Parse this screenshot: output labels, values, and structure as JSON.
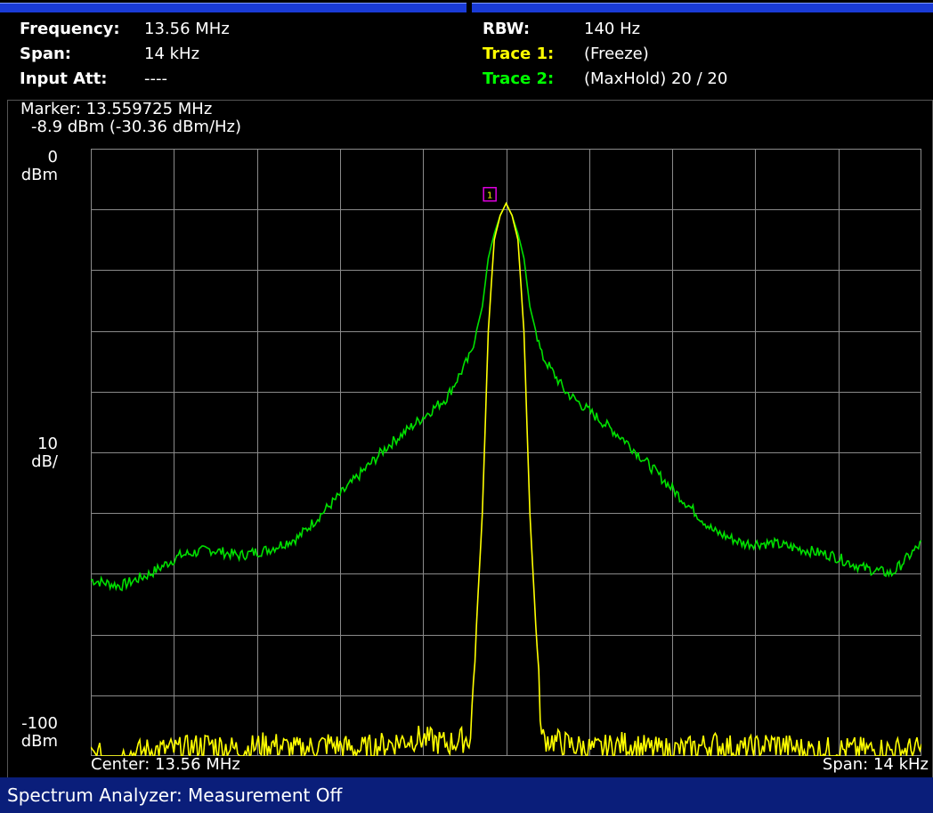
{
  "header": {
    "frequency_label": "Frequency:",
    "frequency_value": "13.56 MHz",
    "span_label": "Span:",
    "span_value": "14 kHz",
    "input_att_label": "Input Att:",
    "input_att_value": "----",
    "rbw_label": "RBW:",
    "rbw_value": "140 Hz",
    "trace1_label": "Trace 1:",
    "trace1_value": "(Freeze)",
    "trace2_label": "Trace 2:",
    "trace2_value": "(MaxHold) 20 / 20"
  },
  "marker": {
    "line1": "Marker: 13.559725 MHz",
    "line2": "-8.9 dBm (-30.36 dBm/Hz)",
    "label": "1"
  },
  "axis": {
    "y_top_value": "0",
    "y_top_unit": "dBm",
    "y_mid_value": "10",
    "y_mid_unit": "dB/",
    "y_bottom_value": "-100",
    "y_bottom_unit": "dBm",
    "x_left": "Center: 13.56 MHz",
    "x_right": "Span: 14 kHz"
  },
  "status": {
    "text": "Spectrum Analyzer: Measurement Off"
  },
  "colors": {
    "trace1": "#ffff00",
    "trace2": "#00e000",
    "grid": "#8a8a8a",
    "marker": "#e000e0",
    "status_bar": "#0a1e7a"
  },
  "chart_data": {
    "type": "line",
    "x": [
      -7,
      -6.5,
      -6,
      -5.5,
      -5,
      -4.5,
      -4,
      -3.5,
      -3,
      -2.5,
      -2,
      -1.5,
      -1,
      -0.6,
      -0.4,
      -0.3,
      -0.2,
      -0.1,
      0,
      0.1,
      0.2,
      0.3,
      0.4,
      0.6,
      1,
      1.5,
      2,
      2.5,
      3,
      3.5,
      4,
      4.5,
      5,
      5.5,
      6,
      6.5,
      7
    ],
    "x_unit": "kHz offset from center",
    "series": [
      {
        "name": "Trace 1",
        "values": [
          -100,
          -100,
          -99,
          -99,
          -98,
          -99,
          -98,
          -99,
          -98,
          -99,
          -98,
          -97,
          -98,
          -97,
          -60,
          -30,
          -15,
          -11,
          -9,
          -11,
          -15,
          -30,
          -60,
          -97,
          -98,
          -99,
          -98,
          -99,
          -99,
          -98,
          -99,
          -98,
          -99,
          -99,
          -99,
          -99,
          -99
        ]
      },
      {
        "name": "Trace 2",
        "values": [
          -71,
          -72,
          -70,
          -67,
          -66,
          -67,
          -66,
          -64,
          -59,
          -54,
          -49,
          -45,
          -41,
          -34,
          -26,
          -18,
          -14,
          -11,
          -9,
          -11,
          -14,
          -18,
          -26,
          -34,
          -40,
          -44,
          -48,
          -53,
          -58,
          -63,
          -65,
          -65,
          -66,
          -67,
          -69,
          -70,
          -65
        ]
      }
    ],
    "xlabel": "",
    "ylabel": "",
    "ylim": [
      -100,
      0
    ],
    "xlim": [
      -7,
      7
    ],
    "y_scale_per_div": 10,
    "grid": true,
    "marker": {
      "x": -0.275,
      "y": -8.9
    }
  }
}
